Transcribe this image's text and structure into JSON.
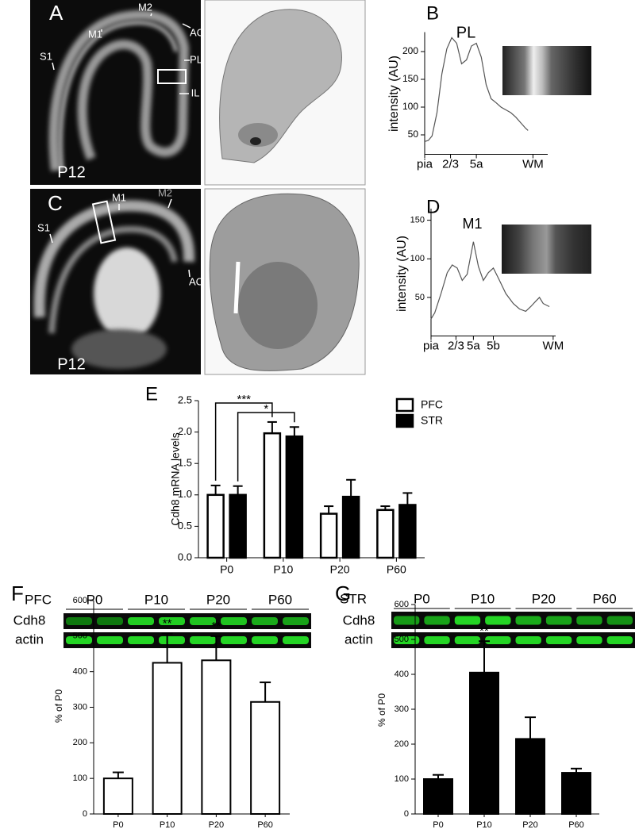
{
  "panel_labels": [
    "A",
    "B",
    "C",
    "D",
    "E",
    "F",
    "G"
  ],
  "images": [
    {
      "labels": [
        "M1",
        "M2",
        "AC",
        "PL",
        "IL",
        "S1"
      ],
      "age": "P12"
    },
    {
      "labels": [
        "M1",
        "M2",
        "S1",
        "AC"
      ],
      "age": "P12"
    }
  ],
  "blots": [
    {
      "region": "PFC",
      "lanes": [
        "P0",
        "P10",
        "P20",
        "P60"
      ],
      "rows": [
        "Cdh8",
        "actin"
      ]
    },
    {
      "region": "STR",
      "lanes": [
        "P0",
        "P10",
        "P20",
        "P60"
      ],
      "rows": [
        "Cdh8",
        "actin"
      ]
    }
  ],
  "chart_data": [
    {
      "type": "line",
      "title": "PL",
      "ylabel": "intensity (AU)",
      "color": "#555555",
      "x": [
        0,
        3,
        6,
        10,
        14,
        18,
        22,
        26,
        30,
        34,
        38,
        42,
        46,
        50,
        54,
        58,
        62,
        66,
        70,
        74,
        78,
        82,
        84
      ],
      "values": [
        38,
        40,
        48,
        90,
        160,
        205,
        225,
        215,
        178,
        185,
        210,
        215,
        190,
        140,
        115,
        108,
        100,
        95,
        90,
        82,
        72,
        62,
        58
      ],
      "xlim": [
        0,
        100
      ],
      "ylim": [
        15,
        235
      ],
      "xticks": [
        {
          "value": 0,
          "label": "pia"
        },
        {
          "value": 21,
          "label": "2/3"
        },
        {
          "value": 42,
          "label": "5a"
        },
        {
          "value": 88,
          "label": "WM"
        }
      ],
      "yticks": [
        50,
        100,
        150,
        200
      ]
    },
    {
      "type": "line",
      "title": "M1",
      "ylabel": "intensity (AU)",
      "color": "#555555",
      "x": [
        0,
        3,
        8,
        13,
        17,
        21,
        25,
        29,
        34,
        38,
        42,
        46,
        50,
        54,
        60,
        66,
        71,
        76,
        80,
        84,
        87,
        90,
        95
      ],
      "values": [
        22,
        30,
        55,
        82,
        92,
        88,
        72,
        80,
        122,
        90,
        72,
        82,
        88,
        75,
        55,
        42,
        35,
        32,
        38,
        45,
        50,
        42,
        38
      ],
      "xlim": [
        0,
        100
      ],
      "ylim": [
        0,
        165
      ],
      "xticks": [
        {
          "value": 0,
          "label": "pia"
        },
        {
          "value": 20,
          "label": "2/3"
        },
        {
          "value": 34,
          "label": "5a"
        },
        {
          "value": 50,
          "label": "5b"
        },
        {
          "value": 98,
          "label": "WM"
        }
      ],
      "yticks": [
        50,
        100,
        150
      ]
    },
    {
      "type": "grouped_bar",
      "ylabel": "Cdh8 mRNA levels",
      "legend": "upper right",
      "categories": [
        "P0",
        "P10",
        "P20",
        "P60"
      ],
      "series": [
        {
          "name": "PFC",
          "color": "#ffffff",
          "edgecolor": "#000000",
          "values": [
            1.0,
            1.98,
            0.7,
            0.76
          ],
          "errors": [
            0.15,
            0.18,
            0.12,
            0.06
          ]
        },
        {
          "name": "STR",
          "color": "#000000",
          "edgecolor": "#000000",
          "values": [
            1.0,
            1.93,
            0.97,
            0.84
          ],
          "errors": [
            0.14,
            0.15,
            0.27,
            0.19
          ]
        }
      ],
      "annotations": [
        "***",
        "*"
      ],
      "ylim": [
        0,
        2.5
      ],
      "yticks": [
        {
          "value": 0,
          "label": "0.0"
        },
        0.5,
        {
          "value": 1,
          "label": "1.0"
        },
        1.5,
        {
          "value": 2,
          "label": "2.0"
        },
        2.5
      ]
    },
    {
      "type": "bar",
      "ylabel": "% of P0",
      "color": "#ffffff",
      "edgecolor": "#000000",
      "categories": [
        "P0",
        "P10",
        "P20",
        "P60"
      ],
      "values": [
        100,
        425,
        432,
        315
      ],
      "errors": [
        17,
        82,
        68,
        55
      ],
      "significance": [
        null,
        "**",
        "**",
        null
      ],
      "ylim": [
        0,
        600
      ],
      "yticks": [
        0,
        100,
        200,
        300,
        400,
        500,
        600
      ]
    },
    {
      "type": "bar",
      "ylabel": "% of P0",
      "color": "#000000",
      "edgecolor": "#000000",
      "categories": [
        "P0",
        "P10",
        "P20",
        "P60"
      ],
      "values": [
        100,
        405,
        215,
        118
      ],
      "errors": [
        12,
        90,
        62,
        12
      ],
      "significance": [
        null,
        "**",
        null,
        null
      ],
      "ylim": [
        0,
        600
      ],
      "yticks": [
        0,
        100,
        200,
        300,
        400,
        500,
        600
      ]
    }
  ]
}
